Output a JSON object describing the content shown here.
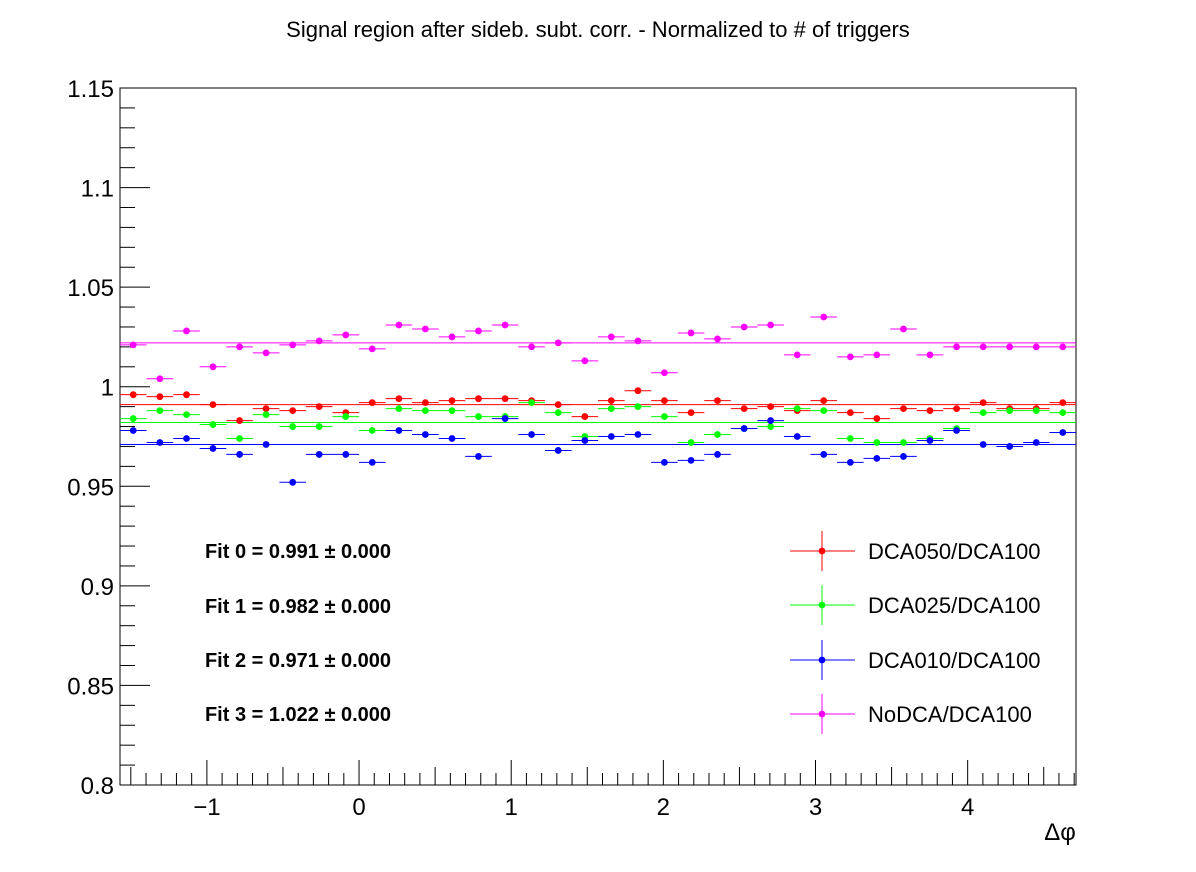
{
  "chart_data": {
    "type": "scatter",
    "title": "Signal region after sideb. subt. corr. - Normalized to # of triggers",
    "xlabel": "Δφ",
    "ylabel": "",
    "xlim": [
      -1.571,
      4.712
    ],
    "ylim": [
      0.8,
      1.15
    ],
    "y_ticks": [
      0.8,
      0.85,
      0.9,
      0.95,
      1,
      1.05,
      1.1,
      1.15
    ],
    "y_tick_labels": [
      "0.8",
      "0.85",
      "0.9",
      "0.95",
      "1",
      "1.05",
      "1.1",
      "1.15"
    ],
    "x_ticks": [
      -1,
      0,
      1,
      2,
      3,
      4
    ],
    "x_tick_labels": [
      "−1",
      "0",
      "1",
      "2",
      "3",
      "4"
    ],
    "grid": false,
    "legend_position": "bottom-right",
    "x": [
      -1.484,
      -1.309,
      -1.134,
      -0.96,
      -0.785,
      -0.611,
      -0.436,
      -0.262,
      -0.087,
      0.087,
      0.262,
      0.436,
      0.611,
      0.785,
      0.96,
      1.134,
      1.309,
      1.484,
      1.658,
      1.833,
      2.007,
      2.182,
      2.356,
      2.531,
      2.705,
      2.88,
      3.054,
      3.229,
      3.403,
      3.578,
      3.752,
      3.927,
      4.102,
      4.276,
      4.451,
      4.625
    ],
    "series": [
      {
        "name": "DCA050/DCA100",
        "color": "#ff0000",
        "fit": 0.991,
        "values": [
          0.996,
          0.995,
          0.996,
          0.991,
          0.983,
          0.989,
          0.988,
          0.99,
          0.987,
          0.992,
          0.994,
          0.992,
          0.993,
          0.994,
          0.994,
          0.993,
          0.991,
          0.985,
          0.993,
          0.998,
          0.993,
          0.987,
          0.993,
          0.989,
          0.99,
          0.988,
          0.993,
          0.987,
          0.984,
          0.989,
          0.988,
          0.989,
          0.992,
          0.989,
          0.989,
          0.992
        ]
      },
      {
        "name": "DCA025/DCA100",
        "color": "#00ff00",
        "fit": 0.982,
        "values": [
          0.984,
          0.988,
          0.986,
          0.981,
          0.974,
          0.986,
          0.98,
          0.98,
          0.985,
          0.978,
          0.989,
          0.988,
          0.988,
          0.985,
          0.985,
          0.992,
          0.987,
          0.975,
          0.989,
          0.99,
          0.985,
          0.972,
          0.976,
          0.979,
          0.98,
          0.989,
          0.988,
          0.974,
          0.972,
          0.972,
          0.974,
          0.979,
          0.987,
          0.988,
          0.988,
          0.987
        ]
      },
      {
        "name": "DCA010/DCA100",
        "color": "#0000ff",
        "fit": 0.971,
        "values": [
          0.978,
          0.972,
          0.974,
          0.969,
          0.966,
          0.971,
          0.952,
          0.966,
          0.966,
          0.962,
          0.978,
          0.976,
          0.974,
          0.965,
          0.984,
          0.976,
          0.968,
          0.973,
          0.975,
          0.976,
          0.962,
          0.963,
          0.966,
          0.979,
          0.983,
          0.975,
          0.966,
          0.962,
          0.964,
          0.965,
          0.973,
          0.978,
          0.971,
          0.97,
          0.972,
          0.977
        ]
      },
      {
        "name": "NoDCA/DCA100",
        "color": "#ff00ff",
        "fit": 1.022,
        "values": [
          1.021,
          1.004,
          1.028,
          1.01,
          1.02,
          1.017,
          1.021,
          1.023,
          1.026,
          1.019,
          1.031,
          1.029,
          1.025,
          1.028,
          1.031,
          1.02,
          1.022,
          1.013,
          1.025,
          1.023,
          1.007,
          1.027,
          1.024,
          1.03,
          1.031,
          1.016,
          1.035,
          1.015,
          1.016,
          1.029,
          1.016,
          1.02,
          1.02,
          1.02,
          1.02,
          1.02
        ]
      }
    ],
    "annotations": [
      "Fit 0 = 0.991 ± 0.000",
      "Fit 1 = 0.982  ± 0.000",
      "Fit 2 = 0.971 ± 0.000",
      "Fit 3 = 1.022  ± 0.000"
    ]
  }
}
